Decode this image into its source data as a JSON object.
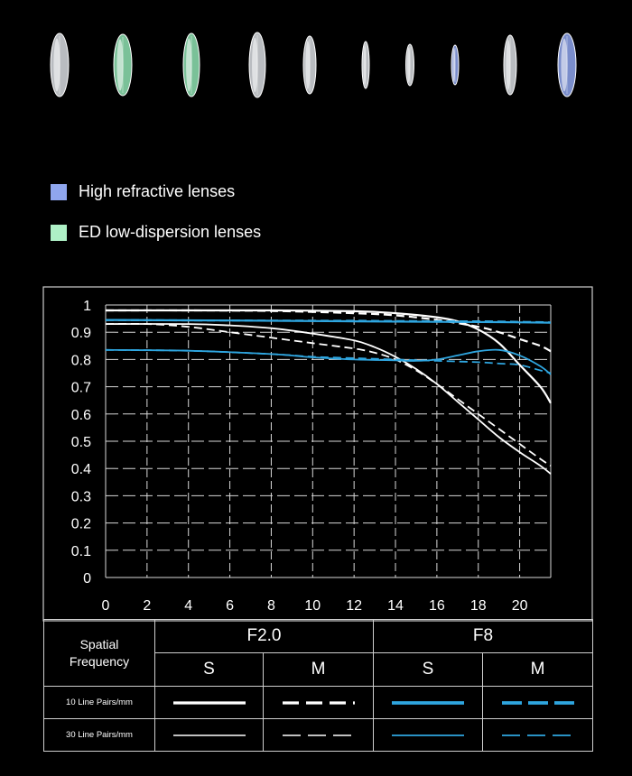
{
  "legend": [
    {
      "label": "High refractive lenses",
      "color": "#8fa6ee"
    },
    {
      "label": "ED low-dispersion lenses",
      "color": "#aef0c6"
    }
  ],
  "lenses": [
    {
      "kind": "clear"
    },
    {
      "kind": "ed"
    },
    {
      "kind": "ed"
    },
    {
      "kind": "clear"
    },
    {
      "kind": "clear"
    },
    {
      "kind": "clear"
    },
    {
      "kind": "clear"
    },
    {
      "kind": "high"
    },
    {
      "kind": "clear"
    },
    {
      "kind": "high"
    }
  ],
  "chart_data": {
    "type": "line",
    "xlim": [
      0,
      21.5
    ],
    "ylim": [
      0,
      1
    ],
    "x_ticks": [
      "0",
      "2",
      "4",
      "6",
      "8",
      "10",
      "12",
      "14",
      "16",
      "18",
      "20"
    ],
    "y_ticks": [
      "0",
      "0.1",
      "0.2",
      "0.3",
      "0.4",
      "0.5",
      "0.6",
      "0.7",
      "0.8",
      "0.9",
      "1"
    ],
    "grid": true,
    "series": [
      {
        "aperture": "F2.0",
        "orientation": "S",
        "frequency": "10 Line Pairs/mm",
        "color": "#ffffff",
        "dash": "solid",
        "points": [
          [
            0,
            0.98
          ],
          [
            4,
            0.98
          ],
          [
            8,
            0.98
          ],
          [
            12,
            0.977
          ],
          [
            14,
            0.97
          ],
          [
            16,
            0.955
          ],
          [
            17,
            0.94
          ],
          [
            18,
            0.91
          ],
          [
            19,
            0.86
          ],
          [
            20,
            0.78
          ],
          [
            21,
            0.7
          ],
          [
            21.5,
            0.64
          ]
        ]
      },
      {
        "aperture": "F2.0",
        "orientation": "M",
        "frequency": "10 Line Pairs/mm",
        "color": "#ffffff",
        "dash": "dashed",
        "points": [
          [
            0,
            0.98
          ],
          [
            4,
            0.98
          ],
          [
            8,
            0.978
          ],
          [
            12,
            0.97
          ],
          [
            14,
            0.962
          ],
          [
            16,
            0.945
          ],
          [
            18,
            0.92
          ],
          [
            19,
            0.9
          ],
          [
            20,
            0.875
          ],
          [
            21,
            0.85
          ],
          [
            21.5,
            0.83
          ]
        ]
      },
      {
        "aperture": "F2.0",
        "orientation": "S",
        "frequency": "30 Line Pairs/mm",
        "color": "#ffffff",
        "dash": "solid",
        "points": [
          [
            0,
            0.93
          ],
          [
            4,
            0.93
          ],
          [
            6,
            0.925
          ],
          [
            8,
            0.915
          ],
          [
            10,
            0.895
          ],
          [
            12,
            0.87
          ],
          [
            13,
            0.845
          ],
          [
            14,
            0.81
          ],
          [
            15,
            0.765
          ],
          [
            16,
            0.71
          ],
          [
            17,
            0.645
          ],
          [
            18,
            0.58
          ],
          [
            19,
            0.515
          ],
          [
            20,
            0.46
          ],
          [
            21,
            0.41
          ],
          [
            21.5,
            0.38
          ]
        ]
      },
      {
        "aperture": "F2.0",
        "orientation": "M",
        "frequency": "30 Line Pairs/mm",
        "color": "#ffffff",
        "dash": "dashed",
        "points": [
          [
            0,
            0.93
          ],
          [
            2,
            0.93
          ],
          [
            4,
            0.92
          ],
          [
            6,
            0.9
          ],
          [
            8,
            0.88
          ],
          [
            10,
            0.86
          ],
          [
            12,
            0.84
          ],
          [
            13,
            0.825
          ],
          [
            14,
            0.8
          ],
          [
            15,
            0.76
          ],
          [
            16,
            0.71
          ],
          [
            17,
            0.655
          ],
          [
            18,
            0.6
          ],
          [
            19,
            0.545
          ],
          [
            20,
            0.49
          ],
          [
            21,
            0.435
          ],
          [
            21.5,
            0.41
          ]
        ]
      },
      {
        "aperture": "F8",
        "orientation": "S",
        "frequency": "10 Line Pairs/mm",
        "color": "#2fa6e0",
        "dash": "solid",
        "points": [
          [
            0,
            0.945
          ],
          [
            6,
            0.943
          ],
          [
            12,
            0.94
          ],
          [
            16,
            0.938
          ],
          [
            19,
            0.937
          ],
          [
            21.5,
            0.935
          ]
        ]
      },
      {
        "aperture": "F8",
        "orientation": "M",
        "frequency": "10 Line Pairs/mm",
        "color": "#2fa6e0",
        "dash": "dashed",
        "points": [
          [
            0,
            0.945
          ],
          [
            6,
            0.943
          ],
          [
            12,
            0.942
          ],
          [
            16,
            0.94
          ],
          [
            18,
            0.94
          ],
          [
            20,
            0.938
          ],
          [
            21.5,
            0.936
          ]
        ]
      },
      {
        "aperture": "F8",
        "orientation": "S",
        "frequency": "30 Line Pairs/mm",
        "color": "#2fa6e0",
        "dash": "solid",
        "points": [
          [
            0,
            0.835
          ],
          [
            4,
            0.832
          ],
          [
            8,
            0.82
          ],
          [
            10,
            0.808
          ],
          [
            12,
            0.8
          ],
          [
            14,
            0.797
          ],
          [
            15,
            0.795
          ],
          [
            16,
            0.8
          ],
          [
            17,
            0.815
          ],
          [
            18,
            0.83
          ],
          [
            19,
            0.835
          ],
          [
            20,
            0.815
          ],
          [
            21,
            0.775
          ],
          [
            21.5,
            0.745
          ]
        ]
      },
      {
        "aperture": "F8",
        "orientation": "M",
        "frequency": "30 Line Pairs/mm",
        "color": "#2fa6e0",
        "dash": "dashed",
        "points": [
          [
            0,
            0.835
          ],
          [
            4,
            0.832
          ],
          [
            8,
            0.82
          ],
          [
            10,
            0.81
          ],
          [
            12,
            0.805
          ],
          [
            14,
            0.8
          ],
          [
            16,
            0.795
          ],
          [
            18,
            0.79
          ],
          [
            19,
            0.785
          ],
          [
            20,
            0.78
          ],
          [
            21,
            0.76
          ],
          [
            21.5,
            0.75
          ]
        ]
      }
    ]
  },
  "table": {
    "spatial_line1": "Spatial",
    "spatial_line2": "Frequency",
    "f20": "F2.0",
    "f8": "F8",
    "s1": "S",
    "m1": "M",
    "s2": "S",
    "m2": "M",
    "row10": "10 Line Pairs/mm",
    "row30": "30 Line Pairs/mm",
    "white": "#ffffff",
    "blue": "#2fa6e0"
  }
}
